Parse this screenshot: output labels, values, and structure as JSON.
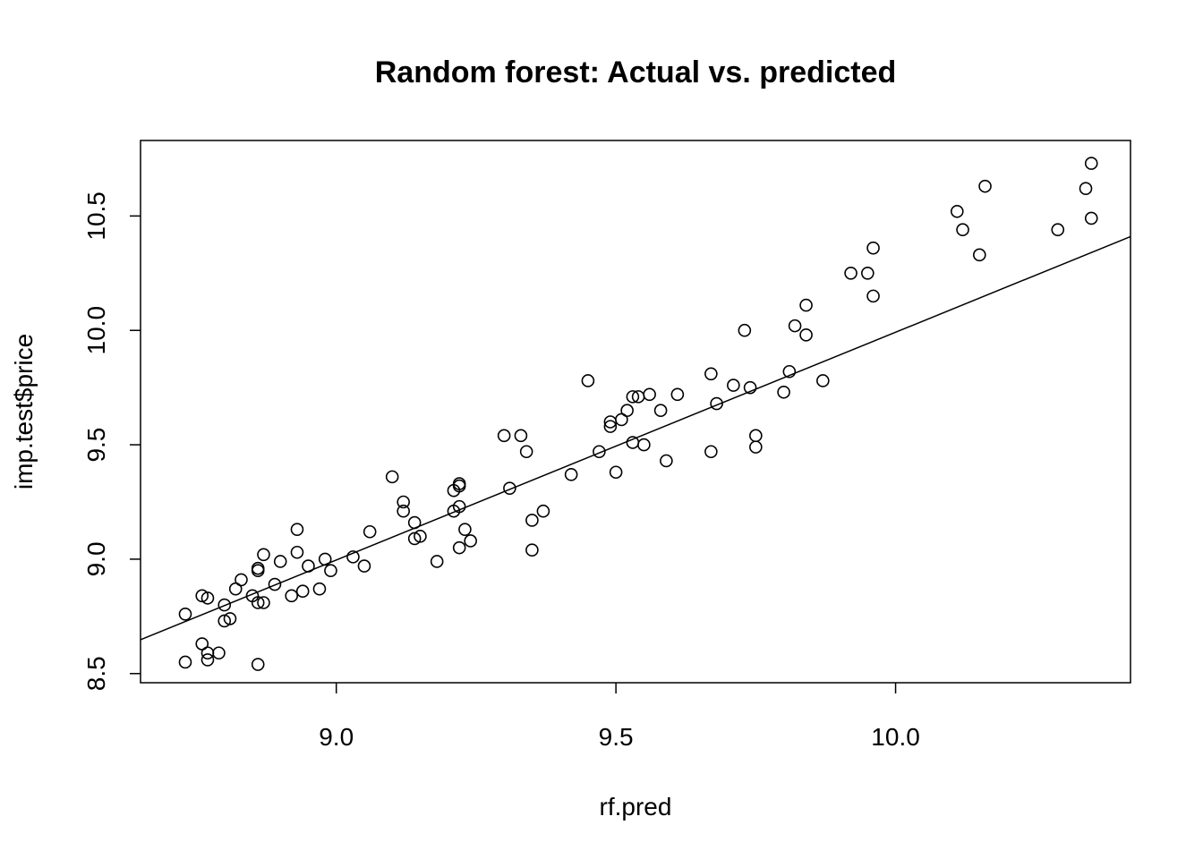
{
  "chart_data": {
    "type": "scatter",
    "title": "Random forest: Actual vs. predicted",
    "xlabel": "rf.pred",
    "ylabel": "imp.test$price",
    "xlim": [
      8.65,
      10.42
    ],
    "ylim": [
      8.46,
      10.83
    ],
    "xticks": [
      "9.0",
      "9.5",
      "10.0"
    ],
    "yticks": [
      "8.5",
      "9.0",
      "9.5",
      "10.0",
      "10.5"
    ],
    "grid": false,
    "legend": "none",
    "fit_line": {
      "label": "",
      "points": [
        [
          8.65,
          8.648
        ],
        [
          10.42,
          10.41
        ]
      ]
    },
    "points": [
      [
        8.73,
        8.76
      ],
      [
        8.73,
        8.55
      ],
      [
        8.76,
        8.84
      ],
      [
        8.77,
        8.83
      ],
      [
        8.76,
        8.63
      ],
      [
        8.77,
        8.59
      ],
      [
        8.77,
        8.56
      ],
      [
        8.79,
        8.59
      ],
      [
        8.8,
        8.8
      ],
      [
        8.8,
        8.73
      ],
      [
        8.81,
        8.74
      ],
      [
        8.82,
        8.87
      ],
      [
        8.83,
        8.91
      ],
      [
        8.85,
        8.84
      ],
      [
        8.86,
        8.81
      ],
      [
        8.86,
        8.96
      ],
      [
        8.86,
        8.95
      ],
      [
        8.87,
        8.81
      ],
      [
        8.87,
        9.02
      ],
      [
        8.86,
        8.54
      ],
      [
        8.89,
        8.89
      ],
      [
        8.9,
        8.99
      ],
      [
        8.92,
        8.84
      ],
      [
        8.93,
        9.03
      ],
      [
        8.93,
        9.13
      ],
      [
        8.94,
        8.86
      ],
      [
        8.95,
        8.97
      ],
      [
        8.97,
        8.87
      ],
      [
        8.98,
        9.0
      ],
      [
        8.99,
        8.95
      ],
      [
        9.03,
        9.01
      ],
      [
        9.05,
        8.97
      ],
      [
        9.06,
        9.12
      ],
      [
        9.1,
        9.36
      ],
      [
        9.12,
        9.21
      ],
      [
        9.12,
        9.25
      ],
      [
        9.14,
        9.09
      ],
      [
        9.14,
        9.16
      ],
      [
        9.15,
        9.1
      ],
      [
        9.18,
        8.99
      ],
      [
        9.21,
        9.21
      ],
      [
        9.21,
        9.3
      ],
      [
        9.22,
        9.32
      ],
      [
        9.22,
        9.33
      ],
      [
        9.22,
        9.23
      ],
      [
        9.23,
        9.13
      ],
      [
        9.22,
        9.05
      ],
      [
        9.24,
        9.08
      ],
      [
        9.3,
        9.54
      ],
      [
        9.31,
        9.31
      ],
      [
        9.33,
        9.54
      ],
      [
        9.34,
        9.47
      ],
      [
        9.35,
        9.17
      ],
      [
        9.35,
        9.04
      ],
      [
        9.37,
        9.21
      ],
      [
        9.42,
        9.37
      ],
      [
        9.45,
        9.78
      ],
      [
        9.47,
        9.47
      ],
      [
        9.49,
        9.58
      ],
      [
        9.49,
        9.6
      ],
      [
        9.5,
        9.38
      ],
      [
        9.51,
        9.61
      ],
      [
        9.52,
        9.65
      ],
      [
        9.53,
        9.71
      ],
      [
        9.53,
        9.51
      ],
      [
        9.54,
        9.71
      ],
      [
        9.55,
        9.5
      ],
      [
        9.56,
        9.72
      ],
      [
        9.58,
        9.65
      ],
      [
        9.59,
        9.43
      ],
      [
        9.61,
        9.72
      ],
      [
        9.67,
        9.81
      ],
      [
        9.67,
        9.47
      ],
      [
        9.68,
        9.68
      ],
      [
        9.71,
        9.76
      ],
      [
        9.73,
        10.0
      ],
      [
        9.74,
        9.75
      ],
      [
        9.75,
        9.49
      ],
      [
        9.75,
        9.54
      ],
      [
        9.8,
        9.73
      ],
      [
        9.81,
        9.82
      ],
      [
        9.82,
        10.02
      ],
      [
        9.84,
        10.11
      ],
      [
        9.84,
        9.98
      ],
      [
        9.87,
        9.78
      ],
      [
        9.92,
        10.25
      ],
      [
        9.95,
        10.25
      ],
      [
        9.96,
        10.15
      ],
      [
        9.96,
        10.36
      ],
      [
        10.11,
        10.52
      ],
      [
        10.12,
        10.44
      ],
      [
        10.15,
        10.33
      ],
      [
        10.16,
        10.63
      ],
      [
        10.29,
        10.44
      ],
      [
        10.34,
        10.62
      ],
      [
        10.35,
        10.73
      ],
      [
        10.35,
        10.49
      ]
    ]
  }
}
